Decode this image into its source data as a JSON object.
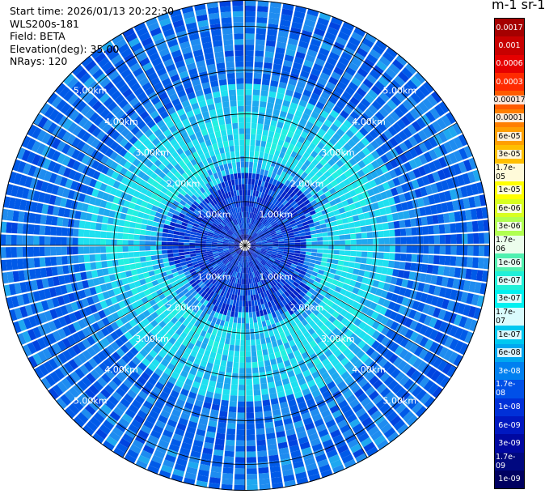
{
  "info": {
    "start_time": "Start time: 2026/01/13 20:22:30",
    "instrument": "WLS200s-181",
    "field": "Field: BETA",
    "elevation": "Elevation(deg): 35.00",
    "nrays": "NRays: 120"
  },
  "colorbar": {
    "title": "m-1 sr-1",
    "labels": [
      "0.0017",
      "0.001",
      "0.0006",
      "0.0003",
      "0.00017",
      "0.0001",
      "6e-05",
      "3e-05",
      "1.7e-05",
      "1e-05",
      "6e-06",
      "3e-06",
      "1.7e-06",
      "1e-06",
      "6e-07",
      "3e-07",
      "1.7e-07",
      "1e-07",
      "6e-08",
      "3e-08",
      "1.7e-08",
      "1e-08",
      "6e-09",
      "3e-09",
      "1.7e-09",
      "1e-09"
    ],
    "colors": [
      "#a50000",
      "#c80000",
      "#e60000",
      "#ff2a00",
      "#ff5a00",
      "#ff7f00",
      "#ff9f00",
      "#ffbf00",
      "#ffdf00",
      "#ffff00",
      "#d8ff20",
      "#b0ff50",
      "#7ff07f",
      "#50f0b0",
      "#20f0d8",
      "#00f0f0",
      "#00e0f0",
      "#00c8f0",
      "#00a8f0",
      "#0080f0",
      "#0050e8",
      "#0030d8",
      "#0018c0",
      "#0008a0",
      "#000880",
      "#000060"
    ]
  },
  "chart_data": {
    "type": "ppi_polar",
    "range_rings": [
      {
        "label": "1.00km",
        "km": 1
      },
      {
        "label": "2.00km",
        "km": 2
      },
      {
        "label": "3.00km",
        "km": 3
      },
      {
        "label": "4.00km",
        "km": 4
      },
      {
        "label": "5.00km",
        "km": 5
      }
    ],
    "max_range_km": 5.6,
    "n_rays": 120,
    "dominant_levels": [
      {
        "range_km": [
          0,
          1.6
        ],
        "value": "1e-08 to 3e-08"
      },
      {
        "range_km": [
          1.6,
          2.8
        ],
        "value": "1e-07 to 1.7e-07"
      },
      {
        "range_km": [
          2.8,
          5.6
        ],
        "value": "3e-08 to 1e-07"
      }
    ]
  }
}
